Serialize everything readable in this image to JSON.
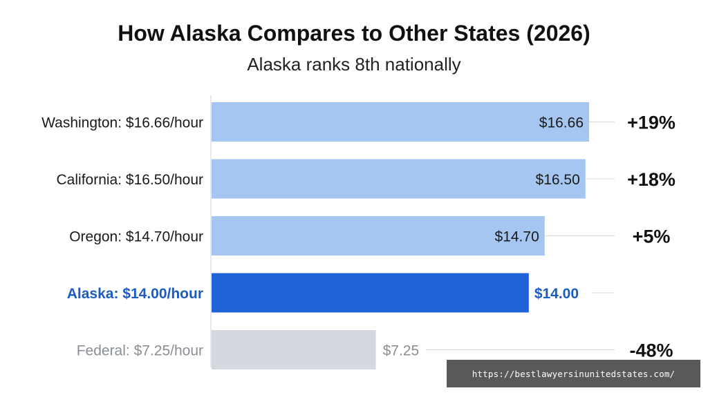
{
  "chart_data": {
    "type": "bar",
    "orientation": "horizontal",
    "title": "How Alaska Compares to Other States (2026)",
    "subtitle": "Alaska ranks 8th nationally",
    "categories": [
      "Washington: $16.66/hour",
      "California: $16.50/hour",
      "Oregon: $14.70/hour",
      "Alaska: $14.00/hour",
      "Federal: $7.25/hour"
    ],
    "values": [
      16.66,
      16.5,
      14.7,
      14.0,
      7.25
    ],
    "value_labels": [
      "$16.66",
      "$16.50",
      "$14.70",
      "$14.00",
      "$7.25"
    ],
    "comparison_labels": [
      "+19%",
      "+18%",
      "+5%",
      "",
      "-48%"
    ],
    "bar_colors": [
      "#a4c6f0",
      "#a4c6f0",
      "#a4c6f0",
      "#1f63d7",
      "#d4d8df"
    ],
    "label_colors": [
      "#1a1a1a",
      "#1a1a1a",
      "#1a1a1a",
      "#1b5cc4",
      "#8a8f96"
    ],
    "xlim": [
      0,
      16.66
    ],
    "grid": false,
    "legend": "none"
  },
  "watermark": "https://bestlawyersinunitedstates.com/"
}
